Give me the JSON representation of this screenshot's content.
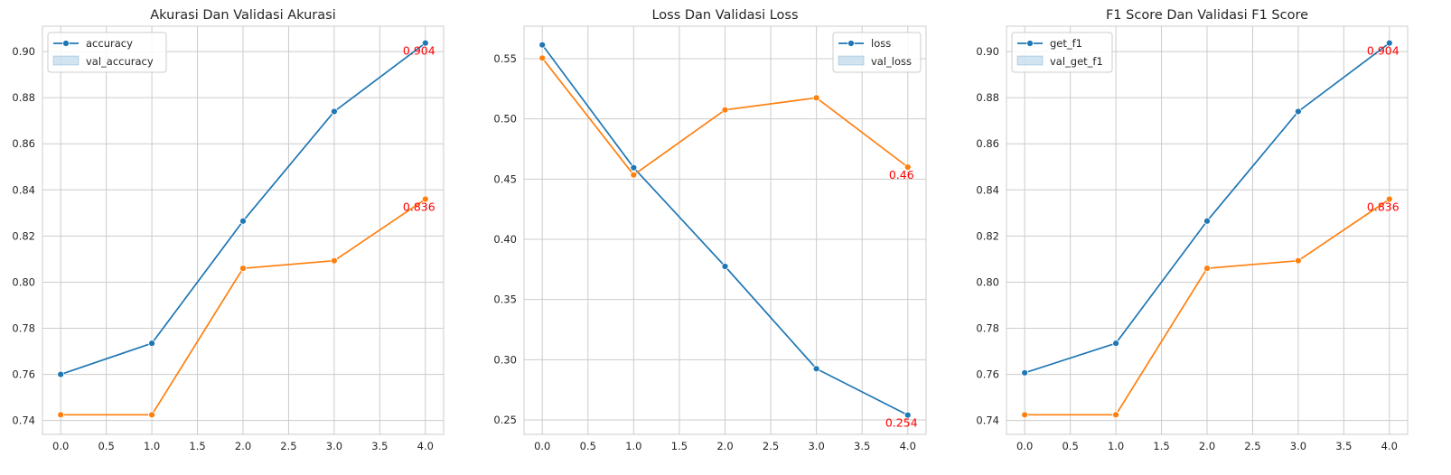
{
  "chart_data": [
    {
      "type": "line",
      "title": "Akurasi Dan Validasi Akurasi",
      "xlabel": "",
      "ylabel": "",
      "x": [
        0,
        1,
        2,
        3,
        4
      ],
      "xticks": [
        "0.0",
        "0.5",
        "1.0",
        "1.5",
        "2.0",
        "2.5",
        "3.0",
        "3.5",
        "4.0"
      ],
      "yticks": [
        "0.74",
        "0.76",
        "0.78",
        "0.80",
        "0.82",
        "0.84",
        "0.86",
        "0.88",
        "0.90"
      ],
      "xlim": [
        -0.2,
        4.2
      ],
      "ylim": [
        0.734,
        0.911
      ],
      "grid": true,
      "legend_position": "upper-left",
      "series": [
        {
          "name": "accuracy",
          "color": "#1f77b4",
          "values": [
            0.76,
            0.7735,
            0.8265,
            0.874,
            0.9037
          ]
        },
        {
          "name": "val_accuracy",
          "color": "#ff7f0e",
          "values": [
            0.7425,
            0.7425,
            0.806,
            0.8093,
            0.836
          ]
        }
      ],
      "annotations": [
        {
          "text": "0.904",
          "x": 4,
          "y": 0.9037,
          "color": "#ff0000"
        },
        {
          "text": "0.836",
          "x": 4,
          "y": 0.836,
          "color": "#ff0000"
        }
      ]
    },
    {
      "type": "line",
      "title": "Loss Dan Validasi Loss",
      "xlabel": "",
      "ylabel": "",
      "x": [
        0,
        1,
        2,
        3,
        4
      ],
      "xticks": [
        "0.0",
        "0.5",
        "1.0",
        "1.5",
        "2.0",
        "2.5",
        "3.0",
        "3.5",
        "4.0"
      ],
      "yticks": [
        "0.25",
        "0.30",
        "0.35",
        "0.40",
        "0.45",
        "0.50",
        "0.55"
      ],
      "xlim": [
        -0.2,
        4.2
      ],
      "ylim": [
        0.238,
        0.577
      ],
      "grid": true,
      "legend_position": "upper-right",
      "series": [
        {
          "name": "loss",
          "color": "#1f77b4",
          "values": [
            0.5615,
            0.4595,
            0.3775,
            0.2925,
            0.254
          ]
        },
        {
          "name": "val_loss",
          "color": "#ff7f0e",
          "values": [
            0.5505,
            0.4535,
            0.5075,
            0.5175,
            0.46
          ]
        }
      ],
      "annotations": [
        {
          "text": "0.46",
          "x": 4,
          "y": 0.46,
          "color": "#ff0000"
        },
        {
          "text": "0.254",
          "x": 4,
          "y": 0.254,
          "color": "#ff0000"
        }
      ]
    },
    {
      "type": "line",
      "title": "F1 Score Dan Validasi F1 Score",
      "xlabel": "",
      "ylabel": "",
      "x": [
        0,
        1,
        2,
        3,
        4
      ],
      "xticks": [
        "0.0",
        "0.5",
        "1.0",
        "1.5",
        "2.0",
        "2.5",
        "3.0",
        "3.5",
        "4.0"
      ],
      "yticks": [
        "0.74",
        "0.76",
        "0.78",
        "0.80",
        "0.82",
        "0.84",
        "0.86",
        "0.88",
        "0.90"
      ],
      "xlim": [
        -0.2,
        4.2
      ],
      "ylim": [
        0.734,
        0.911
      ],
      "grid": true,
      "legend_position": "upper-left",
      "series": [
        {
          "name": "get_f1",
          "color": "#1f77b4",
          "values": [
            0.7607,
            0.7735,
            0.8265,
            0.874,
            0.9037
          ]
        },
        {
          "name": "val_get_f1",
          "color": "#ff7f0e",
          "values": [
            0.7425,
            0.7425,
            0.806,
            0.8093,
            0.836
          ]
        }
      ],
      "annotations": [
        {
          "text": "0.904",
          "x": 4,
          "y": 0.9037,
          "color": "#ff0000"
        },
        {
          "text": "0.836",
          "x": 4,
          "y": 0.836,
          "color": "#ff0000"
        }
      ]
    }
  ]
}
